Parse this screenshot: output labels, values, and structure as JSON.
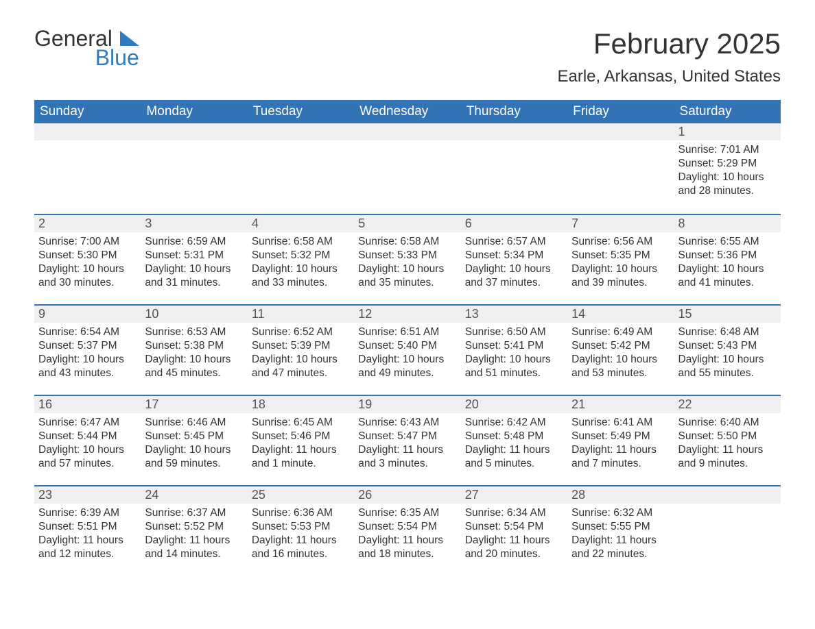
{
  "logo": {
    "line1": "General",
    "line2": "Blue"
  },
  "title": "February 2025",
  "location": "Earle, Arkansas, United States",
  "colors": {
    "header_bg": "#3173b4",
    "header_text": "#ffffff",
    "daynum_bg": "#efefef",
    "text": "#333333",
    "accent": "#2f7cbf"
  },
  "day_labels": [
    "Sunday",
    "Monday",
    "Tuesday",
    "Wednesday",
    "Thursday",
    "Friday",
    "Saturday"
  ],
  "weeks": [
    [
      {
        "n": "",
        "sunrise": "",
        "sunset": "",
        "daylight": ""
      },
      {
        "n": "",
        "sunrise": "",
        "sunset": "",
        "daylight": ""
      },
      {
        "n": "",
        "sunrise": "",
        "sunset": "",
        "daylight": ""
      },
      {
        "n": "",
        "sunrise": "",
        "sunset": "",
        "daylight": ""
      },
      {
        "n": "",
        "sunrise": "",
        "sunset": "",
        "daylight": ""
      },
      {
        "n": "",
        "sunrise": "",
        "sunset": "",
        "daylight": ""
      },
      {
        "n": "1",
        "sunrise": "Sunrise: 7:01 AM",
        "sunset": "Sunset: 5:29 PM",
        "daylight": "Daylight: 10 hours and 28 minutes."
      }
    ],
    [
      {
        "n": "2",
        "sunrise": "Sunrise: 7:00 AM",
        "sunset": "Sunset: 5:30 PM",
        "daylight": "Daylight: 10 hours and 30 minutes."
      },
      {
        "n": "3",
        "sunrise": "Sunrise: 6:59 AM",
        "sunset": "Sunset: 5:31 PM",
        "daylight": "Daylight: 10 hours and 31 minutes."
      },
      {
        "n": "4",
        "sunrise": "Sunrise: 6:58 AM",
        "sunset": "Sunset: 5:32 PM",
        "daylight": "Daylight: 10 hours and 33 minutes."
      },
      {
        "n": "5",
        "sunrise": "Sunrise: 6:58 AM",
        "sunset": "Sunset: 5:33 PM",
        "daylight": "Daylight: 10 hours and 35 minutes."
      },
      {
        "n": "6",
        "sunrise": "Sunrise: 6:57 AM",
        "sunset": "Sunset: 5:34 PM",
        "daylight": "Daylight: 10 hours and 37 minutes."
      },
      {
        "n": "7",
        "sunrise": "Sunrise: 6:56 AM",
        "sunset": "Sunset: 5:35 PM",
        "daylight": "Daylight: 10 hours and 39 minutes."
      },
      {
        "n": "8",
        "sunrise": "Sunrise: 6:55 AM",
        "sunset": "Sunset: 5:36 PM",
        "daylight": "Daylight: 10 hours and 41 minutes."
      }
    ],
    [
      {
        "n": "9",
        "sunrise": "Sunrise: 6:54 AM",
        "sunset": "Sunset: 5:37 PM",
        "daylight": "Daylight: 10 hours and 43 minutes."
      },
      {
        "n": "10",
        "sunrise": "Sunrise: 6:53 AM",
        "sunset": "Sunset: 5:38 PM",
        "daylight": "Daylight: 10 hours and 45 minutes."
      },
      {
        "n": "11",
        "sunrise": "Sunrise: 6:52 AM",
        "sunset": "Sunset: 5:39 PM",
        "daylight": "Daylight: 10 hours and 47 minutes."
      },
      {
        "n": "12",
        "sunrise": "Sunrise: 6:51 AM",
        "sunset": "Sunset: 5:40 PM",
        "daylight": "Daylight: 10 hours and 49 minutes."
      },
      {
        "n": "13",
        "sunrise": "Sunrise: 6:50 AM",
        "sunset": "Sunset: 5:41 PM",
        "daylight": "Daylight: 10 hours and 51 minutes."
      },
      {
        "n": "14",
        "sunrise": "Sunrise: 6:49 AM",
        "sunset": "Sunset: 5:42 PM",
        "daylight": "Daylight: 10 hours and 53 minutes."
      },
      {
        "n": "15",
        "sunrise": "Sunrise: 6:48 AM",
        "sunset": "Sunset: 5:43 PM",
        "daylight": "Daylight: 10 hours and 55 minutes."
      }
    ],
    [
      {
        "n": "16",
        "sunrise": "Sunrise: 6:47 AM",
        "sunset": "Sunset: 5:44 PM",
        "daylight": "Daylight: 10 hours and 57 minutes."
      },
      {
        "n": "17",
        "sunrise": "Sunrise: 6:46 AM",
        "sunset": "Sunset: 5:45 PM",
        "daylight": "Daylight: 10 hours and 59 minutes."
      },
      {
        "n": "18",
        "sunrise": "Sunrise: 6:45 AM",
        "sunset": "Sunset: 5:46 PM",
        "daylight": "Daylight: 11 hours and 1 minute."
      },
      {
        "n": "19",
        "sunrise": "Sunrise: 6:43 AM",
        "sunset": "Sunset: 5:47 PM",
        "daylight": "Daylight: 11 hours and 3 minutes."
      },
      {
        "n": "20",
        "sunrise": "Sunrise: 6:42 AM",
        "sunset": "Sunset: 5:48 PM",
        "daylight": "Daylight: 11 hours and 5 minutes."
      },
      {
        "n": "21",
        "sunrise": "Sunrise: 6:41 AM",
        "sunset": "Sunset: 5:49 PM",
        "daylight": "Daylight: 11 hours and 7 minutes."
      },
      {
        "n": "22",
        "sunrise": "Sunrise: 6:40 AM",
        "sunset": "Sunset: 5:50 PM",
        "daylight": "Daylight: 11 hours and 9 minutes."
      }
    ],
    [
      {
        "n": "23",
        "sunrise": "Sunrise: 6:39 AM",
        "sunset": "Sunset: 5:51 PM",
        "daylight": "Daylight: 11 hours and 12 minutes."
      },
      {
        "n": "24",
        "sunrise": "Sunrise: 6:37 AM",
        "sunset": "Sunset: 5:52 PM",
        "daylight": "Daylight: 11 hours and 14 minutes."
      },
      {
        "n": "25",
        "sunrise": "Sunrise: 6:36 AM",
        "sunset": "Sunset: 5:53 PM",
        "daylight": "Daylight: 11 hours and 16 minutes."
      },
      {
        "n": "26",
        "sunrise": "Sunrise: 6:35 AM",
        "sunset": "Sunset: 5:54 PM",
        "daylight": "Daylight: 11 hours and 18 minutes."
      },
      {
        "n": "27",
        "sunrise": "Sunrise: 6:34 AM",
        "sunset": "Sunset: 5:54 PM",
        "daylight": "Daylight: 11 hours and 20 minutes."
      },
      {
        "n": "28",
        "sunrise": "Sunrise: 6:32 AM",
        "sunset": "Sunset: 5:55 PM",
        "daylight": "Daylight: 11 hours and 22 minutes."
      },
      {
        "n": "",
        "sunrise": "",
        "sunset": "",
        "daylight": ""
      }
    ]
  ]
}
